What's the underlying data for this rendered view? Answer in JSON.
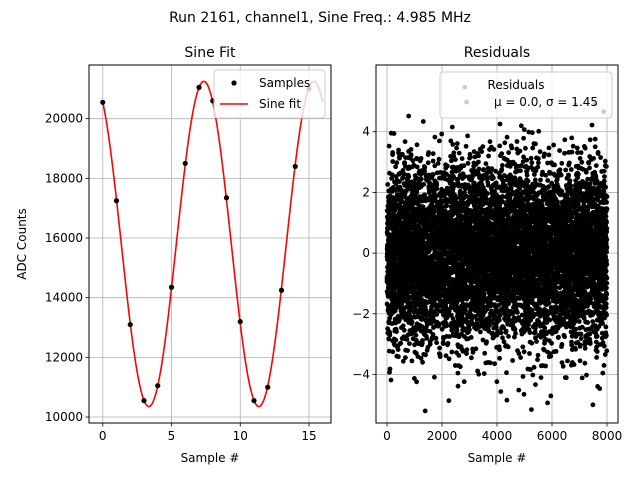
{
  "figure": {
    "suptitle": "Run 2161, channel1, Sine Freq.: 4.985 MHz"
  },
  "chart_data": [
    {
      "type": "scatter",
      "title": "Sine Fit",
      "xlabel": "Sample #",
      "ylabel": "ADC Counts",
      "xlim": [
        -1.0,
        16.6
      ],
      "ylim": [
        9800,
        21800
      ],
      "xticks": [
        0,
        5,
        10,
        15
      ],
      "yticks": [
        10000,
        12000,
        14000,
        16000,
        18000,
        20000
      ],
      "grid": true,
      "legend_position": "top-right",
      "series": [
        {
          "name": "Samples",
          "kind": "points",
          "color": "#000000",
          "x": [
            0,
            1,
            2,
            3,
            4,
            5,
            6,
            7,
            8,
            9,
            10,
            11,
            12,
            13,
            14,
            15
          ],
          "y": [
            20550,
            17250,
            13100,
            10550,
            11050,
            14350,
            18500,
            21050,
            20600,
            17350,
            13200,
            10550,
            11000,
            14250,
            18400,
            21000
          ]
        },
        {
          "name": "Sine fit",
          "kind": "line",
          "color": "#ff0000",
          "model": {
            "offset": 15800,
            "amplitude": 5450,
            "period_samples": 8.0,
            "phase_peak_sample": 7.35,
            "x_range": [
              0,
              16
            ]
          }
        }
      ]
    },
    {
      "type": "scatter",
      "title": "Residuals",
      "xlabel": "Sample #",
      "ylabel": "",
      "xlim": [
        -400,
        8400
      ],
      "ylim": [
        -5.6,
        6.2
      ],
      "xticks": [
        0,
        2000,
        4000,
        6000,
        8000
      ],
      "yticks": [
        -4,
        -2,
        0,
        2,
        4
      ],
      "grid": true,
      "legend_position": "top-right",
      "legend": {
        "title": "Residuals",
        "stats": "μ = 0.0, σ = 1.45"
      },
      "series": [
        {
          "name": "Residuals",
          "kind": "points",
          "color": "#000000",
          "n_points": 8000,
          "mean": 0.0,
          "std": 1.45,
          "x_range": [
            0,
            8000
          ],
          "y_range": [
            -5.2,
            5.6
          ]
        }
      ]
    }
  ]
}
